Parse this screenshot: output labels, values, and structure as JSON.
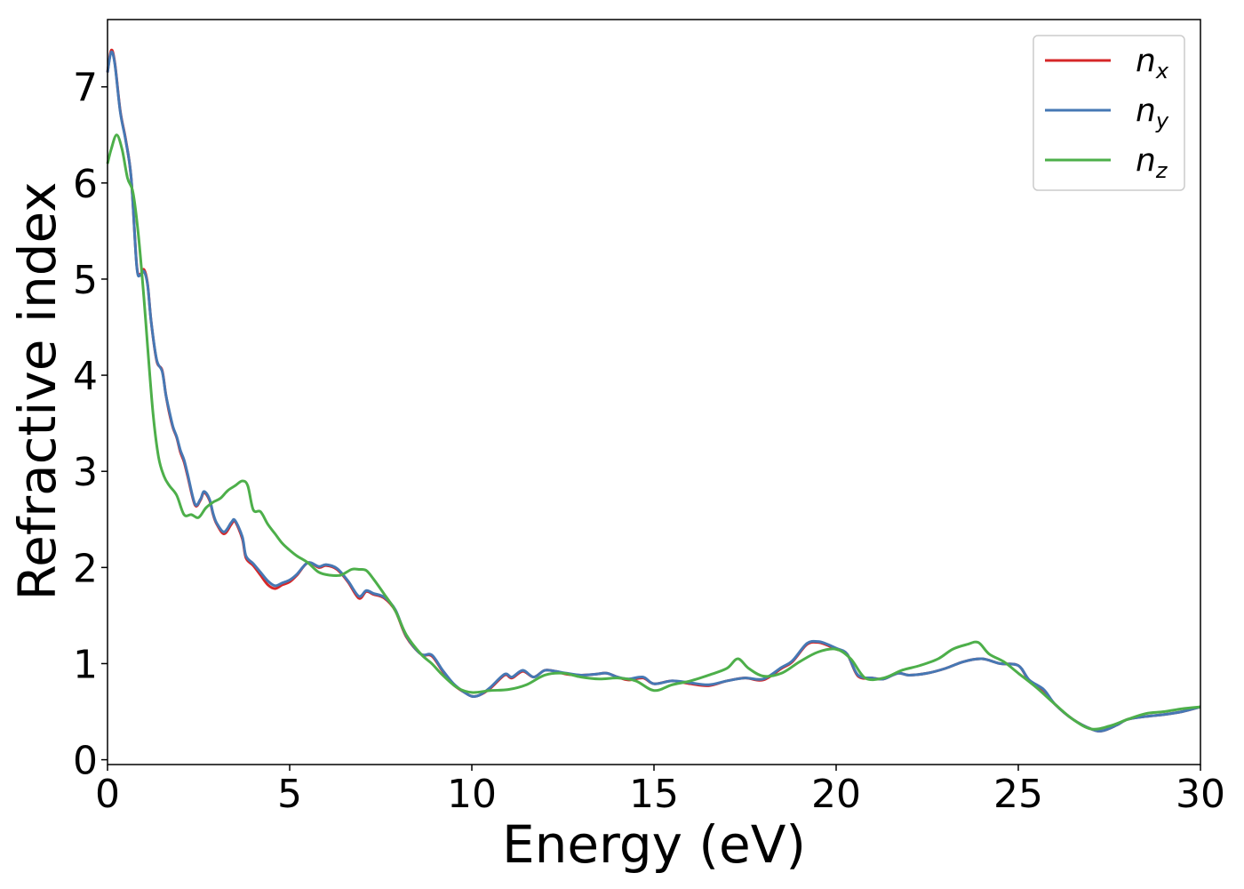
{
  "chart_data": {
    "type": "line",
    "xlabel": "Energy (eV)",
    "ylabel": "Refractive index",
    "xlim": [
      0,
      30
    ],
    "ylim": [
      -0.05,
      7.7
    ],
    "xticks": [
      "0",
      "5",
      "10",
      "15",
      "20",
      "25",
      "30"
    ],
    "yticks": [
      "0",
      "1",
      "2",
      "3",
      "4",
      "5",
      "6",
      "7"
    ],
    "grid": false,
    "legend_position": "top-right",
    "series": [
      {
        "name": "n_x",
        "label_base": "n",
        "label_sub": "x",
        "color": "#d62728",
        "x": [
          0,
          0.1,
          0.2,
          0.35,
          0.5,
          0.65,
          0.8,
          0.9,
          1.0,
          1.1,
          1.2,
          1.35,
          1.5,
          1.6,
          1.7,
          1.8,
          1.9,
          2.0,
          2.1,
          2.2,
          2.4,
          2.55,
          2.65,
          2.8,
          2.9,
          3.0,
          3.2,
          3.4,
          3.5,
          3.7,
          3.8,
          4.0,
          4.2,
          4.4,
          4.6,
          4.8,
          5.0,
          5.2,
          5.5,
          5.8,
          6.0,
          6.3,
          6.6,
          6.9,
          7.1,
          7.3,
          7.6,
          7.9,
          8.2,
          8.6,
          8.9,
          9.2,
          9.5,
          9.8,
          10.0,
          10.2,
          10.5,
          10.9,
          11.1,
          11.4,
          11.7,
          12.0,
          12.3,
          12.6,
          13.0,
          13.4,
          13.7,
          14.0,
          14.3,
          14.7,
          15.0,
          15.5,
          16.0,
          16.5,
          17.0,
          17.5,
          18.0,
          18.5,
          18.8,
          19.2,
          19.5,
          19.7,
          20.0,
          20.3,
          20.6,
          21.0,
          21.3,
          21.7,
          22.0,
          22.5,
          23.0,
          23.5,
          24.0,
          24.5,
          25.0,
          25.3,
          25.7,
          26.0,
          26.5,
          27.0,
          27.3,
          27.7,
          28.0,
          28.5,
          29.0,
          29.5,
          30.0
        ],
        "y": [
          7.15,
          7.38,
          7.25,
          6.75,
          6.45,
          6.05,
          5.15,
          5.05,
          5.1,
          4.95,
          4.55,
          4.15,
          4.05,
          3.8,
          3.6,
          3.45,
          3.35,
          3.2,
          3.1,
          2.95,
          2.65,
          2.7,
          2.78,
          2.7,
          2.55,
          2.45,
          2.35,
          2.45,
          2.48,
          2.3,
          2.1,
          2.02,
          1.92,
          1.82,
          1.78,
          1.82,
          1.85,
          1.92,
          2.05,
          2.0,
          2.02,
          1.98,
          1.85,
          1.68,
          1.75,
          1.72,
          1.68,
          1.55,
          1.28,
          1.1,
          1.08,
          0.92,
          0.78,
          0.7,
          0.66,
          0.67,
          0.74,
          0.88,
          0.85,
          0.92,
          0.86,
          0.93,
          0.92,
          0.89,
          0.88,
          0.89,
          0.9,
          0.86,
          0.83,
          0.85,
          0.79,
          0.82,
          0.79,
          0.77,
          0.82,
          0.85,
          0.83,
          0.95,
          1.02,
          1.2,
          1.22,
          1.2,
          1.15,
          1.1,
          0.87,
          0.85,
          0.84,
          0.9,
          0.88,
          0.9,
          0.95,
          1.02,
          1.05,
          1.0,
          0.98,
          0.82,
          0.72,
          0.58,
          0.42,
          0.32,
          0.3,
          0.36,
          0.42,
          0.45,
          0.47,
          0.5,
          0.55
        ]
      },
      {
        "name": "n_y",
        "label_base": "n",
        "label_sub": "y",
        "color": "#4678b4",
        "x": [
          0,
          0.1,
          0.2,
          0.35,
          0.5,
          0.65,
          0.8,
          0.9,
          1.0,
          1.1,
          1.2,
          1.35,
          1.5,
          1.6,
          1.7,
          1.8,
          1.9,
          2.0,
          2.1,
          2.2,
          2.4,
          2.55,
          2.65,
          2.8,
          2.9,
          3.0,
          3.2,
          3.4,
          3.5,
          3.7,
          3.8,
          4.0,
          4.2,
          4.4,
          4.6,
          4.8,
          5.0,
          5.2,
          5.5,
          5.8,
          6.0,
          6.3,
          6.6,
          6.9,
          7.1,
          7.3,
          7.6,
          7.9,
          8.2,
          8.6,
          8.9,
          9.2,
          9.5,
          9.8,
          10.0,
          10.2,
          10.5,
          10.9,
          11.1,
          11.4,
          11.7,
          12.0,
          12.3,
          12.6,
          13.0,
          13.4,
          13.7,
          14.0,
          14.3,
          14.7,
          15.0,
          15.5,
          16.0,
          16.5,
          17.0,
          17.5,
          18.0,
          18.5,
          18.8,
          19.2,
          19.5,
          19.7,
          20.0,
          20.3,
          20.6,
          21.0,
          21.3,
          21.7,
          22.0,
          22.5,
          23.0,
          23.5,
          24.0,
          24.5,
          25.0,
          25.3,
          25.7,
          26.0,
          26.5,
          27.0,
          27.3,
          27.7,
          28.0,
          28.5,
          29.0,
          29.5,
          30.0
        ],
        "y": [
          7.15,
          7.36,
          7.24,
          6.74,
          6.44,
          6.05,
          5.14,
          5.04,
          5.08,
          4.94,
          4.55,
          4.16,
          4.04,
          3.8,
          3.62,
          3.46,
          3.36,
          3.22,
          3.12,
          2.97,
          2.66,
          2.71,
          2.79,
          2.71,
          2.56,
          2.46,
          2.37,
          2.47,
          2.49,
          2.32,
          2.12,
          2.04,
          1.95,
          1.86,
          1.81,
          1.84,
          1.87,
          1.93,
          2.05,
          2.01,
          2.03,
          1.99,
          1.86,
          1.7,
          1.76,
          1.73,
          1.69,
          1.56,
          1.29,
          1.1,
          1.09,
          0.93,
          0.79,
          0.7,
          0.66,
          0.67,
          0.75,
          0.89,
          0.86,
          0.93,
          0.86,
          0.93,
          0.92,
          0.9,
          0.88,
          0.89,
          0.9,
          0.86,
          0.84,
          0.86,
          0.79,
          0.82,
          0.8,
          0.78,
          0.82,
          0.85,
          0.84,
          0.96,
          1.03,
          1.21,
          1.23,
          1.21,
          1.16,
          1.1,
          0.88,
          0.85,
          0.84,
          0.9,
          0.88,
          0.9,
          0.95,
          1.02,
          1.05,
          1.0,
          0.98,
          0.83,
          0.73,
          0.58,
          0.42,
          0.32,
          0.3,
          0.36,
          0.42,
          0.45,
          0.47,
          0.5,
          0.55
        ]
      },
      {
        "name": "n_z",
        "label_base": "n",
        "label_sub": "z",
        "color": "#4daf4a",
        "x": [
          0,
          0.1,
          0.25,
          0.4,
          0.55,
          0.7,
          0.85,
          1.0,
          1.1,
          1.25,
          1.4,
          1.55,
          1.7,
          1.9,
          2.1,
          2.3,
          2.5,
          2.7,
          2.9,
          3.1,
          3.3,
          3.5,
          3.7,
          3.85,
          4.0,
          4.2,
          4.4,
          4.6,
          4.8,
          5.0,
          5.2,
          5.5,
          5.8,
          6.1,
          6.4,
          6.7,
          6.9,
          7.1,
          7.3,
          7.6,
          7.9,
          8.2,
          8.6,
          8.9,
          9.2,
          9.6,
          10.0,
          10.5,
          11.0,
          11.5,
          12.0,
          12.5,
          13.0,
          13.5,
          14.0,
          14.5,
          15.0,
          15.5,
          16.0,
          16.5,
          17.0,
          17.3,
          17.6,
          18.0,
          18.5,
          19.0,
          19.5,
          20.0,
          20.4,
          20.8,
          21.3,
          21.8,
          22.3,
          22.8,
          23.2,
          23.6,
          23.9,
          24.2,
          24.6,
          25.0,
          25.5,
          26.0,
          26.5,
          27.0,
          27.5,
          28.0,
          28.5,
          29.0,
          29.5,
          30.0
        ],
        "y": [
          6.2,
          6.35,
          6.5,
          6.35,
          6.05,
          5.9,
          5.45,
          4.8,
          4.3,
          3.6,
          3.15,
          2.95,
          2.85,
          2.75,
          2.55,
          2.55,
          2.52,
          2.62,
          2.68,
          2.72,
          2.8,
          2.85,
          2.9,
          2.85,
          2.6,
          2.58,
          2.45,
          2.35,
          2.25,
          2.18,
          2.12,
          2.05,
          1.95,
          1.92,
          1.92,
          1.98,
          1.98,
          1.97,
          1.88,
          1.72,
          1.55,
          1.3,
          1.1,
          1.0,
          0.88,
          0.75,
          0.7,
          0.72,
          0.73,
          0.78,
          0.88,
          0.9,
          0.86,
          0.84,
          0.85,
          0.82,
          0.72,
          0.78,
          0.82,
          0.88,
          0.95,
          1.05,
          0.95,
          0.87,
          0.9,
          1.02,
          1.12,
          1.15,
          1.05,
          0.85,
          0.85,
          0.93,
          0.98,
          1.05,
          1.15,
          1.2,
          1.22,
          1.1,
          1.02,
          0.9,
          0.75,
          0.58,
          0.42,
          0.32,
          0.35,
          0.42,
          0.48,
          0.5,
          0.53,
          0.55
        ]
      }
    ]
  }
}
